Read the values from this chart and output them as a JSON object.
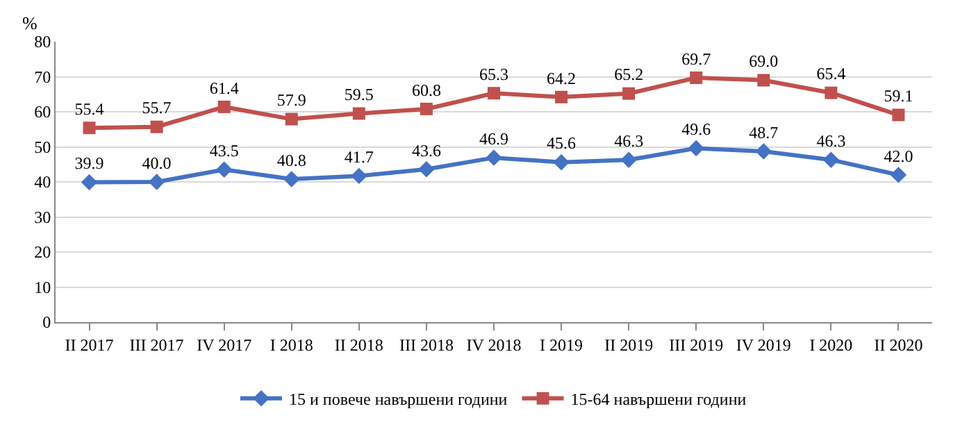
{
  "chart_data": {
    "type": "line",
    "ylabel": "%",
    "categories": [
      "II 2017",
      "III 2017",
      "IV 2017",
      "I 2018",
      "II 2018",
      "III 2018",
      "IV 2018",
      "I 2019",
      "II 2019",
      "III 2019",
      "IV 2019",
      "I 2020",
      "II 2020"
    ],
    "series": [
      {
        "name": "15 и повече навършени години",
        "color": "#4472c4",
        "marker": "diamond",
        "values": [
          39.9,
          40.0,
          43.5,
          40.8,
          41.7,
          43.6,
          46.9,
          45.6,
          46.3,
          49.6,
          48.7,
          46.3,
          42.0
        ],
        "value_labels": [
          "39.9",
          "40.0",
          "43.5",
          "40.8",
          "41.7",
          "43.6",
          "46.9",
          "45.6",
          "46.3",
          "49.6",
          "48.7",
          "46.3",
          "42.0"
        ]
      },
      {
        "name": "15-64 навършени години",
        "color": "#c0504d",
        "marker": "square",
        "values": [
          55.4,
          55.7,
          61.4,
          57.9,
          59.5,
          60.8,
          65.3,
          64.2,
          65.2,
          69.7,
          69.0,
          65.4,
          59.1
        ],
        "value_labels": [
          "55.4",
          "55.7",
          "61.4",
          "57.9",
          "59.5",
          "60.8",
          "65.3",
          "64.2",
          "65.2",
          "69.7",
          "69.0",
          "65.4",
          "59.1"
        ]
      }
    ],
    "ylim": [
      0,
      80
    ],
    "yticks": [
      0,
      10,
      20,
      30,
      40,
      50,
      60,
      70,
      80
    ],
    "grid": "y",
    "legend": "bottom",
    "line_style": "solid"
  }
}
